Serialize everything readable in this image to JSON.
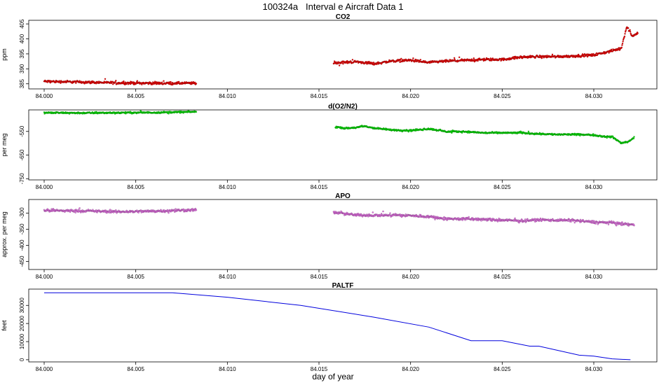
{
  "figure": {
    "title": "100324a   Interval e Aircraft Data 1",
    "xlabel": "day of year"
  },
  "chart_data": [
    {
      "type": "scatter",
      "title": "CO2",
      "ylabel": "ppm",
      "xlim": [
        84.0,
        84.0335
      ],
      "ylim": [
        383.3,
        406.2
      ],
      "xticks": [
        84.0,
        84.005,
        84.01,
        84.015,
        84.02,
        84.025,
        84.03
      ],
      "yticks": [
        385,
        390,
        395,
        400,
        405
      ],
      "color": "#ee0000",
      "series": [
        {
          "x": [
            84.0,
            84.002,
            84.004,
            84.006,
            84.0083,
            84.0158,
            84.017,
            84.018,
            84.019,
            84.02,
            84.021,
            84.022,
            84.024,
            84.025,
            84.026,
            84.027,
            84.028,
            84.029,
            84.03,
            84.031,
            84.0315,
            84.0318,
            84.0321,
            84.0324
          ],
          "y": [
            385.8,
            385.6,
            385.3,
            385.2,
            385.2,
            391.9,
            392.4,
            391.7,
            392.6,
            392.9,
            392.1,
            392.6,
            393.1,
            393.1,
            393.9,
            394.1,
            394.1,
            394.3,
            394.6,
            396.0,
            396.9,
            404.1,
            401.0,
            402.0
          ],
          "jitter": 0.6
        }
      ]
    },
    {
      "type": "scatter",
      "title": "d(O2/N2)",
      "ylabel": "per meg",
      "xlim": [
        84.0,
        84.0335
      ],
      "ylim": [
        -755,
        -459
      ],
      "xticks": [
        84.0,
        84.005,
        84.01,
        84.015,
        84.02,
        84.025,
        84.03
      ],
      "yticks": [
        -550,
        -650,
        -750
      ],
      "color": "#00e000",
      "series": [
        {
          "x": [
            84.0,
            84.002,
            84.004,
            84.006,
            84.0083,
            84.0159,
            84.0165,
            84.017,
            84.0175,
            84.018,
            84.019,
            84.02,
            84.021,
            84.022,
            84.023,
            84.024,
            84.025,
            84.026,
            84.027,
            84.028,
            84.029,
            84.03,
            84.0305,
            84.031,
            84.0315,
            84.0319,
            84.0322
          ],
          "y": [
            -471,
            -472,
            -471,
            -470,
            -467,
            -531,
            -537,
            -534,
            -528,
            -536,
            -544,
            -546,
            -539,
            -551,
            -551,
            -556,
            -556,
            -556,
            -560,
            -563,
            -563,
            -565,
            -571,
            -573,
            -599,
            -593,
            -575
          ],
          "jitter": 5
        }
      ]
    },
    {
      "type": "scatter",
      "title": "APO",
      "ylabel": "approx. per meg",
      "xlim": [
        84.0,
        84.0335
      ],
      "ylim": [
        -475,
        -258
      ],
      "xticks": [
        84.0,
        84.005,
        84.01,
        84.015,
        84.02,
        84.025,
        84.03
      ],
      "yticks": [
        -300,
        -350,
        -400,
        -450
      ],
      "color": "#e070e0",
      "series": [
        {
          "x": [
            84.0,
            84.002,
            84.004,
            84.006,
            84.0083,
            84.0158,
            84.017,
            84.018,
            84.019,
            84.02,
            84.021,
            84.022,
            84.023,
            84.024,
            84.025,
            84.026,
            84.027,
            84.028,
            84.029,
            84.03,
            84.031,
            84.032,
            84.0322
          ],
          "y": [
            -292,
            -293,
            -296,
            -294,
            -290,
            -298,
            -306,
            -307,
            -306,
            -308,
            -311,
            -318,
            -318,
            -320,
            -322,
            -324,
            -321,
            -322,
            -323,
            -328,
            -330,
            -336,
            -337
          ],
          "jitter": 6
        }
      ]
    },
    {
      "type": "line",
      "title": "PALTF",
      "ylabel": "feet",
      "xlim": [
        84.0,
        84.0335
      ],
      "ylim": [
        -1200,
        39000
      ],
      "xticks": [
        84.0,
        84.005,
        84.01,
        84.015,
        84.02,
        84.025,
        84.03
      ],
      "yticks": [
        0,
        10000,
        20000,
        30000
      ],
      "color": "#0000dd",
      "series": [
        {
          "x": [
            84.0,
            84.007,
            84.01,
            84.014,
            84.018,
            84.021,
            84.0233,
            84.025,
            84.0265,
            84.027,
            84.0292,
            84.03,
            84.031,
            84.032
          ],
          "y": [
            37000,
            37000,
            34500,
            30000,
            23500,
            18000,
            10500,
            10500,
            7500,
            7500,
            2500,
            2000,
            500,
            0
          ]
        }
      ]
    }
  ]
}
